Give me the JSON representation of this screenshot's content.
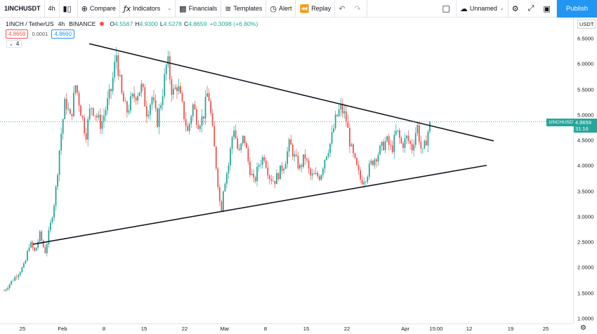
{
  "toolbar": {
    "symbol": "1INCHUSDT",
    "interval": "4h",
    "compare": "Compare",
    "indicators": "Indicators",
    "financials": "Financials",
    "templates": "Templates",
    "alert": "Alert",
    "replay": "Replay",
    "layout_name": "Unnamed",
    "publish": "Publish"
  },
  "legend": {
    "title": "1INCH / TetherUS",
    "interval": "4h",
    "exchange": "BINANCE",
    "o_label": "O",
    "o": "4.5567",
    "h_label": "H",
    "h": "4.9300",
    "l_label": "L",
    "l": "4.5278",
    "c_label": "C",
    "c": "4.8659",
    "change": "+0.3098 (+6.80%)",
    "bid": "4.8659",
    "spread": "0.0001",
    "ask": "4.8660",
    "indicator_count": "4"
  },
  "price_axis": {
    "currency": "USDT",
    "ticks": [
      "6.5000",
      "6.0000",
      "5.5000",
      "5.0000",
      "4.5000",
      "4.0000",
      "3.5000",
      "3.0000",
      "2.5000",
      "2.0000",
      "1.5000",
      "1.0000"
    ],
    "last_price": "4.8659",
    "countdown": "31:16",
    "symbol_tag": "1INCHUSDT"
  },
  "time_axis": {
    "ticks": [
      "25",
      "Feb",
      "8",
      "15",
      "22",
      "Mar",
      "8",
      "15",
      "22",
      "Apr",
      "15:00",
      "12",
      "19",
      "25"
    ]
  },
  "chart_data": {
    "type": "candlestick",
    "symbol": "1INCHUSDT",
    "ylim": [
      0.95,
      6.65
    ],
    "x_range": [
      "Jan 23",
      "Apr 28"
    ],
    "trendlines": [
      {
        "name": "upper",
        "from": {
          "x": "Feb 6",
          "y": 6.4
        },
        "to": {
          "x": "Apr 18",
          "y": 4.49
        }
      },
      {
        "name": "lower",
        "from": {
          "x": "Jan 28",
          "y": 2.46
        },
        "to": {
          "x": "Apr 16",
          "y": 4.01
        }
      }
    ],
    "colors": {
      "up": "#26a69a",
      "down": "#ef5350",
      "trendline": "#131722"
    },
    "last_close": 4.8659,
    "path_points": [
      [
        0,
        1.55
      ],
      [
        2,
        1.8
      ],
      [
        4,
        2.05
      ],
      [
        5,
        2.5
      ],
      [
        6,
        2.3
      ],
      [
        7,
        2.65
      ],
      [
        8,
        2.3
      ],
      [
        9,
        2.8
      ],
      [
        10,
        3.4
      ],
      [
        11,
        4.5
      ],
      [
        12,
        5.3
      ],
      [
        13,
        4.9
      ],
      [
        14,
        5.6
      ],
      [
        16,
        4.6
      ],
      [
        17,
        5.2
      ],
      [
        19,
        4.8
      ],
      [
        21,
        5.5
      ],
      [
        22,
        6.2
      ],
      [
        23,
        5.4
      ],
      [
        24,
        5.05
      ],
      [
        25,
        5.3
      ],
      [
        27,
        5.55
      ],
      [
        28,
        5.05
      ],
      [
        29,
        5.35
      ],
      [
        30,
        4.85
      ],
      [
        31,
        5.4
      ],
      [
        32,
        6.1
      ],
      [
        33,
        5.4
      ],
      [
        34,
        5.6
      ],
      [
        36,
        4.65
      ],
      [
        37,
        5.2
      ],
      [
        38,
        4.85
      ],
      [
        39,
        4.95
      ],
      [
        40,
        5.5
      ],
      [
        41,
        4.55
      ],
      [
        42,
        3.6
      ],
      [
        42.5,
        3.05
      ],
      [
        43,
        3.6
      ],
      [
        44,
        4.0
      ],
      [
        45,
        4.8
      ],
      [
        46,
        4.2
      ],
      [
        47,
        4.6
      ],
      [
        48,
        4.0
      ],
      [
        49,
        3.65
      ],
      [
        50,
        4.05
      ],
      [
        51,
        4.2
      ],
      [
        52,
        3.8
      ],
      [
        53,
        3.7
      ],
      [
        55,
        4.05
      ],
      [
        56,
        4.45
      ],
      [
        57,
        4.15
      ],
      [
        58,
        3.95
      ],
      [
        59,
        4.2
      ],
      [
        60,
        3.8
      ],
      [
        62,
        3.8
      ],
      [
        63,
        4.2
      ],
      [
        64,
        4.45
      ],
      [
        65,
        4.9
      ],
      [
        66,
        5.15
      ],
      [
        67,
        4.95
      ],
      [
        68,
        4.35
      ],
      [
        69,
        4.0
      ],
      [
        70,
        3.7
      ],
      [
        71,
        3.8
      ],
      [
        72,
        4.05
      ],
      [
        74,
        4.35
      ],
      [
        75,
        4.5
      ],
      [
        76,
        4.3
      ],
      [
        77,
        4.7
      ],
      [
        78,
        4.4
      ],
      [
        79,
        4.55
      ],
      [
        80,
        4.35
      ],
      [
        81,
        4.8
      ],
      [
        82,
        4.2
      ],
      [
        83,
        4.6
      ],
      [
        83.5,
        4.87
      ]
    ]
  }
}
